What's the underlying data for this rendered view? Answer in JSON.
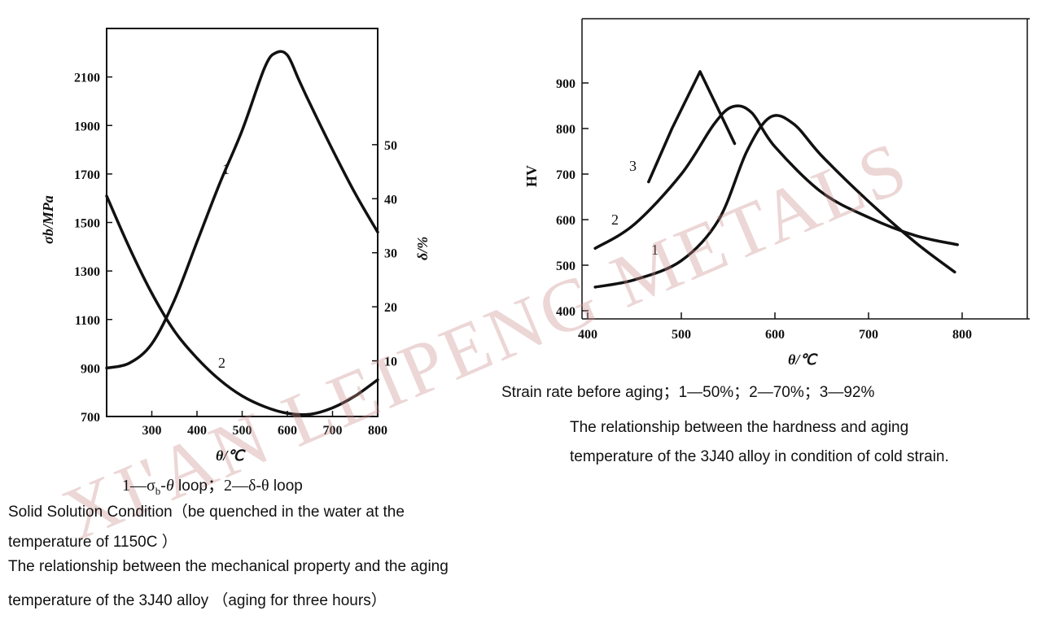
{
  "chart_data": [
    {
      "type": "line",
      "xlabel": "θ/℃",
      "ylabel": "σb/MPa",
      "y2label": "δ/%",
      "xlim": [
        200,
        800
      ],
      "ylim": [
        700,
        2300
      ],
      "y2lim": [
        -0.3,
        71.5
      ],
      "x_ticks": [
        300,
        400,
        500,
        600,
        700,
        800
      ],
      "y_ticks": [
        700,
        900,
        1100,
        1300,
        1500,
        1700,
        1900,
        2100
      ],
      "y2_ticks": [
        10,
        20,
        30,
        40,
        50
      ],
      "series": [
        {
          "name": "1",
          "axis": "left",
          "x": [
            200,
            250,
            300,
            350,
            400,
            450,
            500,
            550,
            575,
            600,
            625,
            650,
            700,
            750,
            800
          ],
          "y": [
            900,
            920,
            1000,
            1180,
            1420,
            1660,
            1880,
            2140,
            2200,
            2190,
            2090,
            1990,
            1800,
            1620,
            1460
          ]
        },
        {
          "name": "2",
          "axis": "right",
          "x": [
            200,
            250,
            300,
            350,
            400,
            450,
            500,
            550,
            600,
            650,
            700,
            750,
            800
          ],
          "y": [
            40.5,
            31,
            22.5,
            15.5,
            10.5,
            6.5,
            3.5,
            1.5,
            0.3,
            0.1,
            1.3,
            3.5,
            6.5
          ]
        }
      ],
      "legend_prefix": "1—σ",
      "legend_sub": "b",
      "legend_mid": "-θ",
      "legend_loop1": " loop",
      "legend_sep": "；2—δ-θ",
      "legend_loop2": " loop",
      "caption_lines": [
        "Solid Solution Condition（be quenched in the water at the",
        "temperature of 1150C ）",
        "The relationship between the mechanical property and the aging",
        "temperature of the 3J40 alloy （aging for three hours）"
      ]
    },
    {
      "type": "line",
      "xlabel": "θ/℃",
      "ylabel": "HV",
      "xlim": [
        400,
        870
      ],
      "ylim": [
        385,
        1000
      ],
      "x_ticks": [
        400,
        500,
        600,
        700,
        800
      ],
      "y_ticks": [
        400,
        500,
        600,
        700,
        800,
        900
      ],
      "series": [
        {
          "name": "1",
          "x": [
            408,
            450,
            500,
            540,
            570,
            595,
            620,
            650,
            700,
            750,
            792
          ],
          "y": [
            452,
            468,
            510,
            600,
            750,
            825,
            810,
            740,
            640,
            550,
            485
          ]
        },
        {
          "name": "2",
          "x": [
            408,
            450,
            500,
            535,
            555,
            575,
            600,
            650,
            700,
            750,
            795
          ],
          "y": [
            537,
            590,
            700,
            810,
            848,
            835,
            760,
            660,
            605,
            565,
            545
          ]
        },
        {
          "name": "3",
          "x": [
            465,
            490,
            520,
            540,
            557
          ],
          "y": [
            683,
            800,
            925,
            840,
            767
          ]
        }
      ],
      "legend_line": "Strain rate before aging；1—50%；2—70%；3—92%",
      "caption_lines": [
        "The relationship between the hardness and aging",
        "temperature of the 3J40 alloy in condition of cold strain."
      ]
    }
  ],
  "watermark": "XI'AN LEIPENG METALS",
  "colors": {
    "ink": "#111111",
    "watermark": "#c98a8a",
    "background": "#ffffff"
  }
}
